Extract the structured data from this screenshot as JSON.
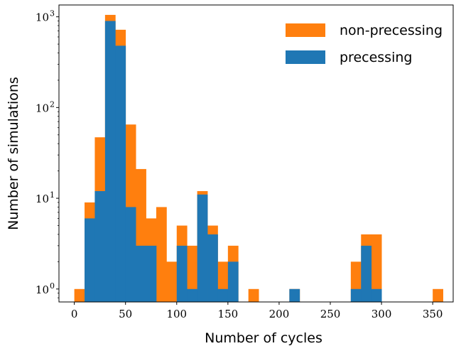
{
  "chart_data": {
    "type": "bar",
    "title": "",
    "xlabel": "Number of cycles",
    "ylabel": "Number of simulations",
    "yscale": "log",
    "ylim": [
      0.72,
      1350
    ],
    "xlim": [
      -15,
      370
    ],
    "bin_width": 10,
    "bin_starts": [
      0,
      10,
      20,
      30,
      40,
      50,
      60,
      70,
      80,
      90,
      100,
      110,
      120,
      130,
      140,
      150,
      160,
      170,
      180,
      190,
      200,
      210,
      220,
      230,
      240,
      250,
      260,
      270,
      280,
      290,
      300,
      310,
      320,
      330,
      340,
      350
    ],
    "x_ticks": [
      {
        "value": 0,
        "label": "0"
      },
      {
        "value": 50,
        "label": "50"
      },
      {
        "value": 100,
        "label": "100"
      },
      {
        "value": 150,
        "label": "150"
      },
      {
        "value": 200,
        "label": "200"
      },
      {
        "value": 250,
        "label": "250"
      },
      {
        "value": 300,
        "label": "300"
      },
      {
        "value": 350,
        "label": "350"
      }
    ],
    "y_ticks": [
      {
        "value": 1,
        "base": "10",
        "exp": "0"
      },
      {
        "value": 10,
        "base": "10",
        "exp": "1"
      },
      {
        "value": 100,
        "base": "10",
        "exp": "2"
      },
      {
        "value": 1000,
        "base": "10",
        "exp": "3"
      }
    ],
    "legend_position": "top-right",
    "grid": false,
    "series": [
      {
        "name": "non-precessing",
        "color": "#ff7f0e",
        "values": [
          1,
          9,
          47,
          1050,
          720,
          65,
          21,
          6,
          8,
          2,
          5,
          3,
          12,
          5,
          2,
          3,
          0,
          1,
          0,
          0,
          0,
          1,
          0,
          0,
          0,
          0,
          0,
          2,
          4,
          4,
          0,
          0,
          0,
          0,
          0,
          1
        ]
      },
      {
        "name": "precessing",
        "color": "#1f77b4",
        "values": [
          0,
          6,
          12,
          900,
          480,
          8,
          3,
          3,
          0,
          0,
          3,
          1,
          11,
          4,
          1,
          2,
          0,
          0,
          0,
          0,
          0,
          1,
          0,
          0,
          0,
          0,
          0,
          1,
          3,
          1,
          0,
          0,
          0,
          0,
          0,
          0
        ]
      }
    ]
  }
}
